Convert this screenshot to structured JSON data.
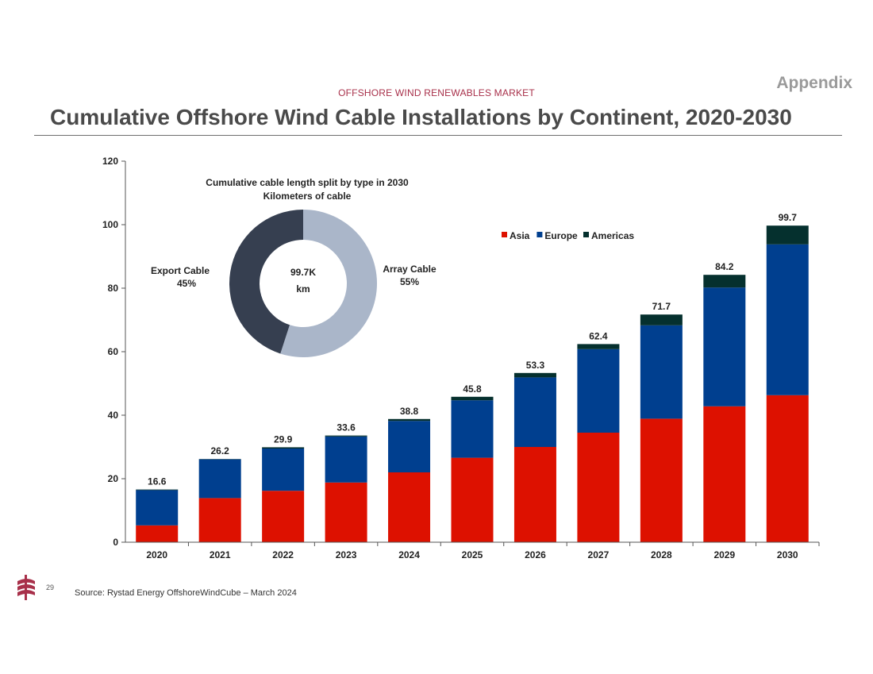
{
  "header": {
    "appendix": "Appendix",
    "kicker": "OFFSHORE WIND RENEWABLES MARKET",
    "title": "Cumulative Offshore Wind Cable Installations by Continent, 2020-2030"
  },
  "footer": {
    "page_number": "29",
    "source": "Source: Rystad Energy OffshoreWindCube – March 2024"
  },
  "colors": {
    "asia": "#dd1100",
    "europe": "#003f8f",
    "americas": "#05302e",
    "export_cable": "#363f50",
    "array_cable": "#aab6c9",
    "logo": "#a8304a"
  },
  "chart_data": [
    {
      "type": "bar",
      "stacked": true,
      "categories": [
        "2020",
        "2021",
        "2022",
        "2023",
        "2024",
        "2025",
        "2026",
        "2027",
        "2028",
        "2029",
        "2030"
      ],
      "series": [
        {
          "name": "Asia",
          "values": [
            5.3,
            13.9,
            16.2,
            18.8,
            22.0,
            26.6,
            30.0,
            34.5,
            38.9,
            42.8,
            46.3
          ]
        },
        {
          "name": "Europe",
          "values": [
            11.1,
            12.2,
            13.3,
            14.5,
            16.2,
            18.1,
            21.9,
            26.3,
            29.4,
            37.4,
            47.5
          ]
        },
        {
          "name": "Americas",
          "values": [
            0.2,
            0.1,
            0.4,
            0.3,
            0.6,
            1.1,
            1.4,
            1.6,
            3.4,
            4.0,
            5.9
          ]
        }
      ],
      "totals": [
        "16.6",
        "26.2",
        "29.9",
        "33.6",
        "38.8",
        "45.8",
        "53.3",
        "62.4",
        "71.7",
        "84.2",
        "99.7"
      ],
      "yticks": [
        "0",
        "20",
        "40",
        "60",
        "80",
        "100",
        "120"
      ],
      "ylim": [
        0,
        120
      ],
      "legend": "top-right",
      "grid": false
    },
    {
      "type": "pie",
      "donut": true,
      "title_line1": "Cumulative cable length split by type in 2030",
      "title_line2": "Kilometers of cable",
      "center_value": "99.7K",
      "center_unit": "km",
      "slices": [
        {
          "label": "Array Cable",
          "value": 55,
          "value_label": "55%"
        },
        {
          "label": "Export Cable",
          "value": 45,
          "value_label": "45%"
        }
      ]
    }
  ]
}
